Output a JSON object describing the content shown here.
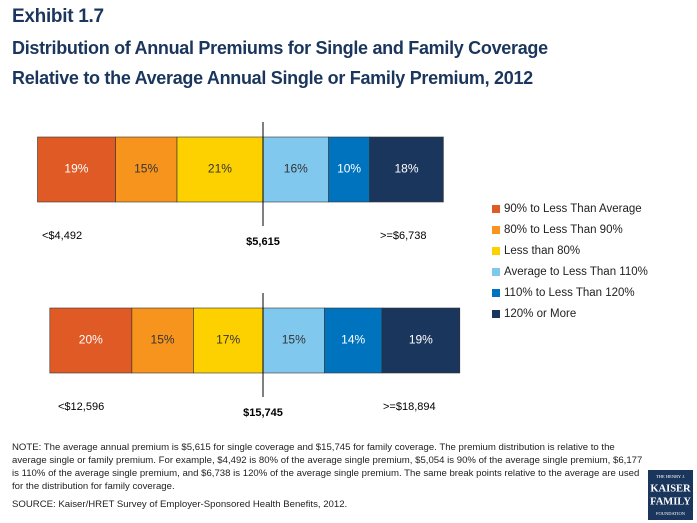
{
  "chart_data": {
    "type": "diverging-bar",
    "title": "Exhibit 1.7",
    "subtitle": [
      "Distribution of Annual Premiums for Single and Family Coverage",
      "Relative to the Average Annual Single or Family Premium, 2012"
    ],
    "categories": [
      null,
      null
    ],
    "series": [
      {
        "name": "90% to Less Than Average",
        "color": "#e05a26",
        "side": "left",
        "values": [
          19,
          20
        ],
        "value_labels": [
          "19%",
          "20%"
        ]
      },
      {
        "name": "80% to Less Than 90%",
        "color": "#f7941d",
        "side": "left",
        "values": [
          15,
          15
        ],
        "value_labels": [
          "15%",
          "15%"
        ]
      },
      {
        "name": "Less than 80%",
        "color": "#fdd000",
        "side": "left",
        "values": [
          21,
          17
        ],
        "value_labels": [
          "21%",
          "17%"
        ]
      },
      {
        "name": "Average to Less Than 110%",
        "color": "#80c8ee",
        "side": "right",
        "values": [
          16,
          15
        ],
        "value_labels": [
          "16%",
          "15%"
        ]
      },
      {
        "name": "110% to Less Than 120%",
        "color": "#0073bf",
        "side": "right",
        "values": [
          10,
          14
        ],
        "value_labels": [
          "10%",
          "14%"
        ]
      },
      {
        "name": "120% or More",
        "color": "#1b365d",
        "side": "right",
        "values": [
          18,
          19
        ],
        "value_labels": [
          "18%",
          "19%"
        ]
      }
    ],
    "bar_labels": [
      {
        "low": "<$4,492",
        "average": "$5,615",
        "high": ">=$6,738"
      },
      {
        "low": "<$12,596",
        "average": "$15,745",
        "high": ">=$18,894"
      }
    ],
    "legend": "right",
    "note": "NOTE: The average annual premium is $5,615 for single coverage and $15,745 for family coverage.  The premium distribution is relative to the average single or family premium.  For example, $4,492 is 80% of the average single premium, $5,054 is 90% of the average single premium, $6,177 is 110% of the average single premium, and $6,738 is 120% of the average single premium.  The same break points relative to the average are used for the distribution for family coverage.",
    "source": "SOURCE: Kaiser/HRET Survey of Employer-Sponsored Health Benefits, 2012.",
    "logo": [
      "THE HENRY J.",
      "KAISER",
      "FAMILY",
      "FOUNDATION"
    ]
  }
}
